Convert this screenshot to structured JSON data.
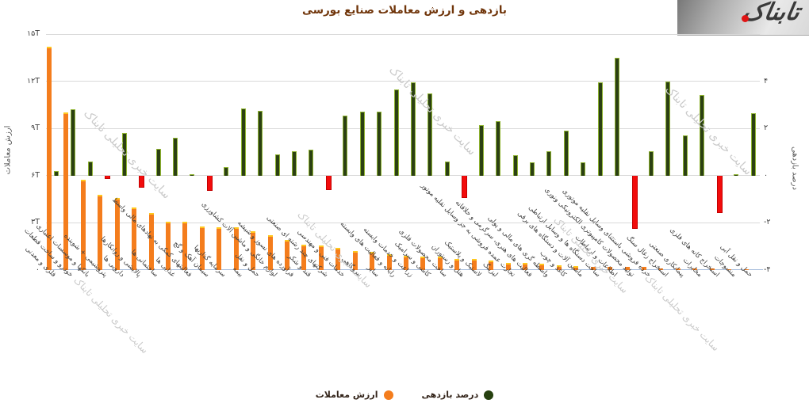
{
  "title": "بازدهی و ارزش معاملات صنایع بورسی",
  "logo": {
    "text": "تابناک"
  },
  "watermark": "سایت خبری تحلیلی تابناک",
  "legend": {
    "value_label": "ارزش معاملات",
    "return_label": "درصد بازدهی"
  },
  "left_axis": {
    "title": "ارزش معاملات",
    "ticks": [
      {
        "label": "۱۵T",
        "value": 15
      },
      {
        "label": "۱۲T",
        "value": 12
      },
      {
        "label": "۹T",
        "value": 9
      },
      {
        "label": "۶T",
        "value": 6
      },
      {
        "label": "۳T",
        "value": 3
      },
      {
        "label": "۰",
        "value": 0
      }
    ]
  },
  "right_axis": {
    "title": "درصد بازدهی",
    "ticks": [
      {
        "label": "۴",
        "value": 4
      },
      {
        "label": "۲",
        "value": 2
      },
      {
        "label": "۰",
        "value": 0
      },
      {
        "label": "-۲",
        "value": -2
      },
      {
        "label": "-۴",
        "value": -4
      }
    ]
  },
  "colors": {
    "value_bar": "#F47D1D",
    "value_bar_cap": "#FFC81E",
    "return_positive": "#2B4012",
    "return_negative": "#F20C0C",
    "gridline": "#d9d9d9",
    "baseline": "#a7bddb",
    "title_text": "#70350a",
    "watermark_text": "#cacaca",
    "logo_dot": "#e01414"
  },
  "chart_data": {
    "type": "bar",
    "title": "بازدهی و ارزش معاملات صنایع بورسی",
    "xlabel": "",
    "ylabel_left": "ارزش معاملات",
    "ylabel_right": "درصد بازدهی",
    "left_ylim": [
      0,
      15
    ],
    "right_ylim": [
      -4,
      6
    ],
    "grid": true,
    "legend_position": "bottom",
    "categories": [
      "فلزی و معدنی",
      "خودرو و ساخت قطعات",
      "بانکها و موسسات اعتباری",
      "پتروشیمی + شوینده",
      "دارویی ها",
      "پالایشی و روانکارها",
      "ساختمانی ها",
      "غذایی ها",
      "فعالیتهای کمکی به نهادهای مالی واسط",
      "سیمان آهک و گچ",
      "سرمایه گذاریها",
      "بیمه",
      "حمل و نقل",
      "لوازم خانگی و ماشین آلات کشاورزی",
      "فرآورده های نسوز و شیشه",
      "قند و شکر",
      "شرکتهای چند رشته ای صنعتی",
      "خدمات فنی و مهندسی",
      "نیروگاهی",
      "سایر",
      "رایانه و فعالیت های وابسته",
      "زراعت و خدمات وابسته",
      "کاشی و سرامیک",
      "ساخت محصولات فلزی",
      "هتل و رستوران",
      "لاستیک و پلاستیک",
      "لیزینگ",
      "تجارت عمده فروشی به جز وسایل نقلیه موتور",
      "فعالیت های هنری، سرگرمی و خلاقانه",
      "واسطه گری های مالی و پولی",
      "کاغذ و چوب",
      "ماشین آلات و دستگاه های برقی",
      "ساخت دستگاه ها و وسایل ارتباطی",
      "اطلاعات و ارتباطات",
      "تولید محصولات کامپیوتری الکترونیکی ونوری",
      "خرده فروشی باستثنای وسایل نقلیه موتوری",
      "استخراج زغال سنگ",
      "پیمانکاری صنعتی",
      "مخابرات",
      "استخراج کانه های فلزی",
      "منسوجات",
      "حمل و نقل آبی"
    ],
    "series": [
      {
        "name": "ارزش معاملات",
        "axis": "left",
        "unit": "T",
        "values": [
          14.2,
          10.0,
          5.75,
          4.8,
          4.6,
          4.0,
          3.6,
          3.05,
          3.05,
          2.75,
          2.7,
          2.7,
          2.45,
          2.2,
          1.9,
          1.6,
          1.55,
          1.4,
          1.2,
          1.15,
          1.0,
          0.9,
          0.85,
          0.85,
          0.7,
          0.7,
          0.6,
          0.45,
          0.45,
          0.4,
          0.3,
          0.25,
          0.2,
          0.2,
          0.2,
          0.18,
          0.12,
          0.12,
          0.1,
          0.08,
          0.05,
          0.03
        ]
      },
      {
        "name": "درصد بازدهی",
        "axis": "right",
        "unit": "%",
        "values": [
          0.2,
          2.8,
          0.6,
          -0.15,
          1.8,
          -0.5,
          1.15,
          1.6,
          0.05,
          -0.65,
          0.35,
          2.85,
          2.75,
          0.9,
          1.05,
          1.1,
          -0.6,
          2.55,
          2.7,
          2.7,
          3.65,
          3.95,
          3.5,
          0.6,
          -0.95,
          2.15,
          2.3,
          0.85,
          0.55,
          1.05,
          1.9,
          0.55,
          3.95,
          5.0,
          -2.25,
          1.05,
          4.0,
          1.7,
          3.4,
          -1.6,
          0.05,
          2.65
        ]
      }
    ]
  }
}
